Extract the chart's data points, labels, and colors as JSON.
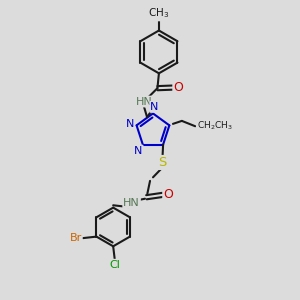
{
  "bg": "#dcdcdc",
  "black": "#1a1a1a",
  "blue": "#0000cc",
  "red": "#cc0000",
  "yellow": "#b8b800",
  "br_color": "#cc6600",
  "cl_color": "#009900",
  "gray": "#557755",
  "lw": 1.5,
  "fs": 7.5,
  "xlim": [
    0,
    10
  ],
  "ylim": [
    0,
    10
  ]
}
